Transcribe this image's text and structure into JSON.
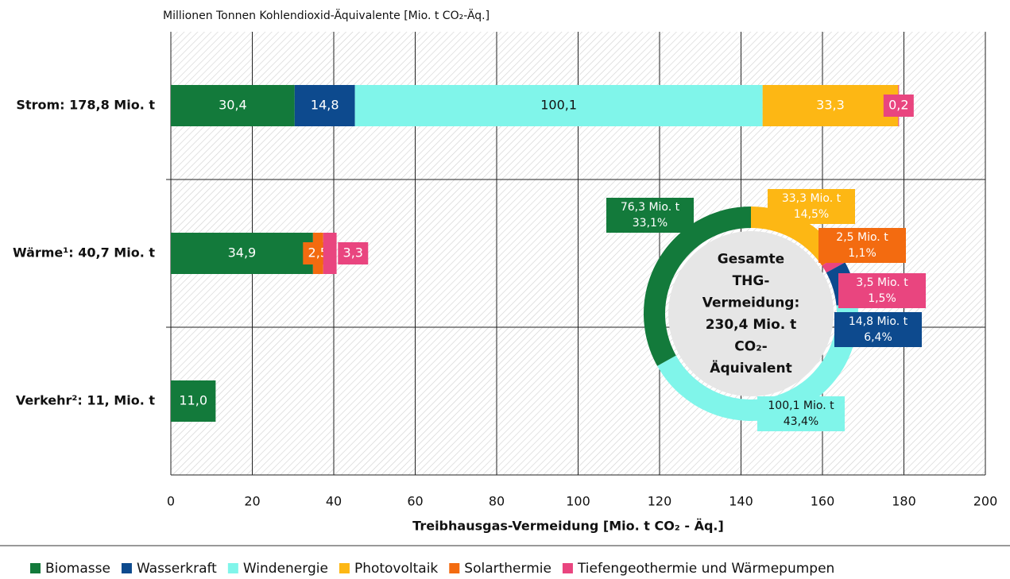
{
  "chart_data": [
    {
      "type": "bar",
      "orientation": "horizontal",
      "stacked": true,
      "unit_label": "Millionen Tonnen Kohlendioxid-Äquivalente [Mio. t CO₂-Äq.]",
      "xlabel": "Treibhausgas-Vermeidung [Mio. t CO₂ - Äq.]",
      "categories": [
        "Strom: 178,8 Mio. t",
        "Wärme¹: 40,7 Mio. t",
        "Verkehr²: 11, Mio. t"
      ],
      "series": [
        {
          "name": "Biomasse",
          "color": "#137a3b",
          "values": [
            30.4,
            34.9,
            11.0
          ],
          "value_labels": [
            "30,4",
            "34,9",
            "11,0"
          ]
        },
        {
          "name": "Wasserkraft",
          "color": "#0d4a8e",
          "values": [
            14.8,
            null,
            null
          ],
          "value_labels": [
            "14,8",
            null,
            null
          ]
        },
        {
          "name": "Windenergie",
          "color": "#80f5ea",
          "values": [
            100.1,
            null,
            null
          ],
          "value_labels": [
            "100,1",
            null,
            null
          ]
        },
        {
          "name": "Photovoltaik",
          "color": "#fdb714",
          "values": [
            33.3,
            null,
            null
          ],
          "value_labels": [
            "33,3",
            null,
            null
          ]
        },
        {
          "name": "Solarthermie",
          "color": "#f36b10",
          "values": [
            null,
            2.5,
            null
          ],
          "value_labels": [
            null,
            "2,5",
            null
          ]
        },
        {
          "name": "Tiefengeothermie und Wärmepumpen",
          "color": "#e9457f",
          "values": [
            0.2,
            3.3,
            null
          ],
          "value_labels": [
            "0,2",
            "3,3",
            null
          ]
        }
      ],
      "xlim": [
        0,
        200
      ],
      "xticks": [
        0,
        20,
        40,
        60,
        80,
        100,
        120,
        140,
        160,
        180,
        200
      ],
      "grid": true,
      "legend": "bottom"
    },
    {
      "type": "pie",
      "donut": true,
      "center_label": [
        "Gesamte",
        "THG-",
        "Vermeidung:",
        "230,4 Mio. t",
        "CO₂-",
        "Äquivalent"
      ],
      "values": [
        33.3,
        2.5,
        3.5,
        14.8,
        100.1,
        76.3
      ],
      "value_labels": [
        "33,3 Mio. t",
        "2,5 Mio. t",
        "3,5 Mio. t",
        "14,8 Mio. t",
        "100,1 Mio. t",
        "76,3 Mio. t"
      ],
      "percent_labels": [
        "14,5%",
        "1,1%",
        "1,5%",
        "6,4%",
        "43,4%",
        "33,1%"
      ],
      "colors": [
        "#fdb714",
        "#f36b10",
        "#e9457f",
        "#0d4a8e",
        "#80f5ea",
        "#137a3b"
      ]
    }
  ]
}
